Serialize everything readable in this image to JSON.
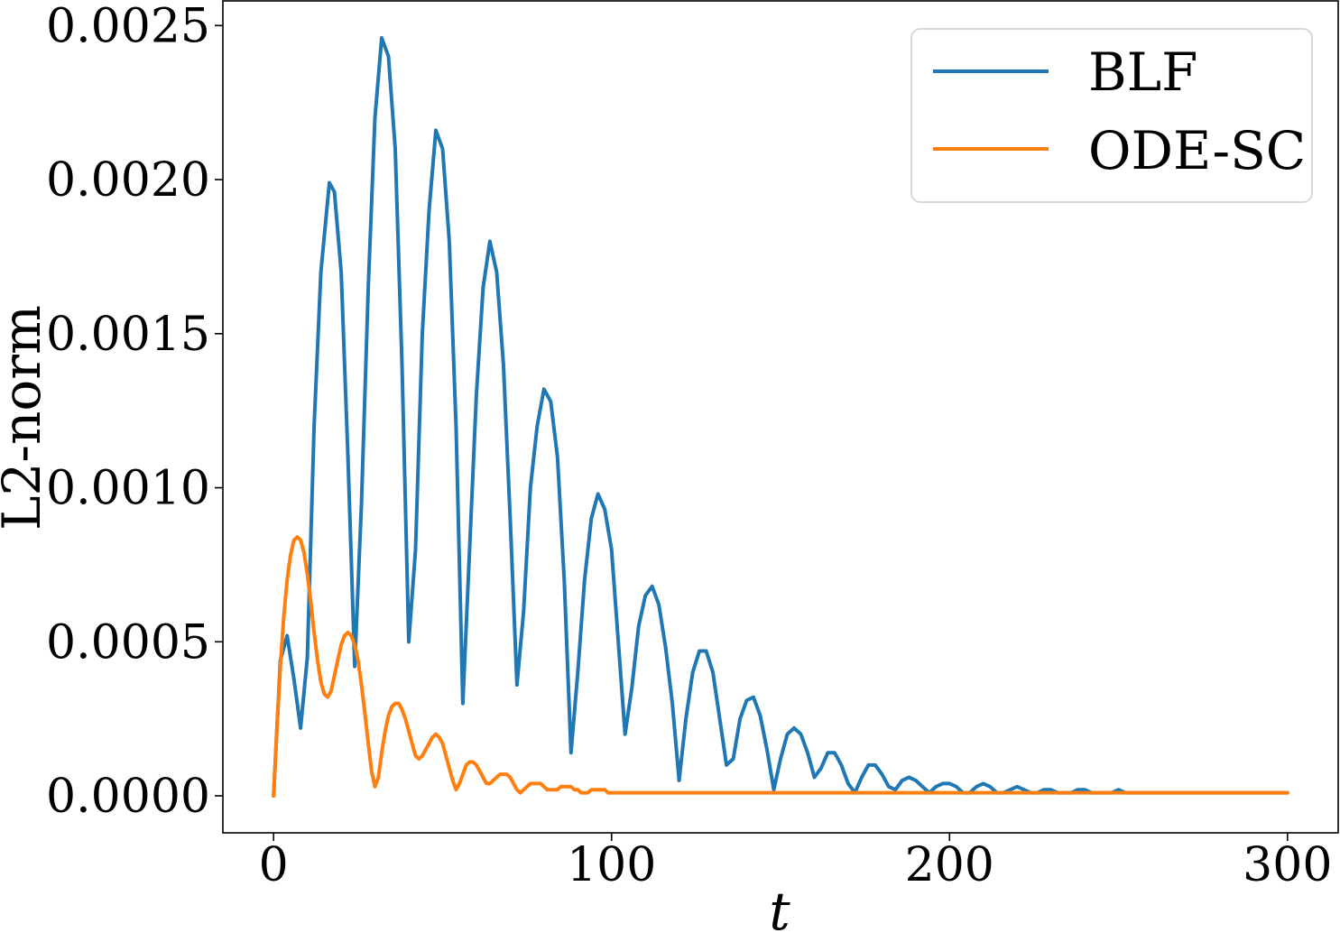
{
  "chart_data": {
    "type": "line",
    "title": "",
    "xlabel": "t",
    "ylabel": "L2-norm",
    "xlim": [
      -15,
      315
    ],
    "ylim": [
      -0.00012,
      0.00258
    ],
    "xticks": [
      0,
      100,
      200,
      300
    ],
    "xtick_labels": [
      "0",
      "100",
      "200",
      "300"
    ],
    "yticks": [
      0,
      0.0005,
      0.001,
      0.0015,
      0.002,
      0.0025
    ],
    "ytick_labels": [
      "0.0000",
      "0.0005",
      "0.0010",
      "0.0015",
      "0.0020",
      "0.0025"
    ],
    "grid": false,
    "legend_position": "top-right",
    "series": [
      {
        "name": "BLF",
        "color": "#1f77b4",
        "x": [
          0,
          2,
          4,
          6,
          8,
          10,
          12,
          14,
          16.5,
          18,
          20,
          22,
          24,
          26,
          28,
          30,
          32,
          34,
          36,
          38,
          40,
          42,
          44,
          46,
          48,
          50,
          52,
          54,
          56,
          58,
          60,
          62,
          64,
          66,
          68,
          70,
          72,
          74,
          76,
          78,
          80,
          82,
          84,
          86,
          88,
          90,
          92,
          94,
          96,
          98,
          100,
          102,
          104,
          106,
          108,
          110,
          112,
          114,
          116,
          118,
          120,
          122,
          124,
          126,
          128,
          130,
          132,
          134,
          136,
          138,
          140,
          142,
          144,
          146,
          148,
          150,
          152,
          154,
          156,
          158,
          160,
          162,
          164,
          166,
          168,
          170,
          172,
          174,
          176,
          178,
          180,
          182,
          184,
          186,
          188,
          190,
          192,
          194,
          196,
          198,
          200,
          202,
          204,
          206,
          208,
          210,
          212,
          214,
          216,
          218,
          220,
          222,
          224,
          226,
          228,
          230,
          232,
          234,
          236,
          238,
          240,
          242,
          244,
          246,
          248,
          250,
          252,
          254,
          256,
          258,
          260,
          262,
          264,
          266,
          268,
          270,
          272,
          274,
          276,
          278,
          280,
          282,
          284,
          286,
          288,
          290,
          292,
          294,
          296,
          298,
          300
        ],
        "y": [
          0.0,
          0.00044,
          0.00052,
          0.00038,
          0.00022,
          0.00045,
          0.0012,
          0.0017,
          0.00199,
          0.00196,
          0.0017,
          0.0011,
          0.00042,
          0.00095,
          0.00165,
          0.0022,
          0.00246,
          0.0024,
          0.0021,
          0.0014,
          0.0005,
          0.0008,
          0.0015,
          0.0019,
          0.00216,
          0.0021,
          0.0018,
          0.0012,
          0.0003,
          0.0008,
          0.0013,
          0.00165,
          0.0018,
          0.0017,
          0.0014,
          0.0009,
          0.00036,
          0.0006,
          0.001,
          0.0012,
          0.00132,
          0.00128,
          0.0011,
          0.0007,
          0.00014,
          0.0004,
          0.0007,
          0.0009,
          0.00098,
          0.00093,
          0.0008,
          0.0005,
          0.0002,
          0.00035,
          0.00055,
          0.00065,
          0.00068,
          0.00062,
          0.00048,
          0.0003,
          5e-05,
          0.00025,
          0.0004,
          0.00047,
          0.00047,
          0.0004,
          0.00025,
          0.0001,
          0.00012,
          0.00025,
          0.00031,
          0.00032,
          0.00026,
          0.00015,
          2e-05,
          0.00012,
          0.0002,
          0.00022,
          0.0002,
          0.00014,
          6e-05,
          9e-05,
          0.00014,
          0.00014,
          0.0001,
          4e-05,
          1e-05,
          6e-05,
          0.0001,
          0.0001,
          7e-05,
          3e-05,
          2e-05,
          5e-05,
          6e-05,
          5e-05,
          3e-05,
          1e-05,
          3e-05,
          4e-05,
          4e-05,
          3e-05,
          1e-05,
          1e-05,
          3e-05,
          4e-05,
          3e-05,
          1e-05,
          1e-05,
          2e-05,
          3e-05,
          2e-05,
          1e-05,
          1e-05,
          2e-05,
          2e-05,
          1e-05,
          1e-05,
          1e-05,
          2e-05,
          2e-05,
          1e-05,
          1e-05,
          1e-05,
          1e-05,
          2e-05,
          1e-05,
          1e-05,
          1e-05,
          1e-05,
          1e-05,
          1e-05,
          1e-05,
          1e-05,
          1e-05,
          1e-05,
          1e-05,
          1e-05,
          1e-05,
          1e-05,
          1e-05,
          1e-05,
          1e-05,
          1e-05,
          1e-05,
          1e-05,
          1e-05,
          1e-05,
          1e-05,
          1e-05,
          1e-05
        ]
      },
      {
        "name": "ODE-SC",
        "color": "#ff7f0e",
        "x": [
          0,
          1,
          2,
          3,
          4,
          5,
          6,
          7,
          8,
          9,
          10,
          11,
          12,
          13,
          14,
          15,
          16,
          17,
          18,
          19,
          20,
          21,
          22,
          23,
          24,
          25,
          26,
          27,
          28,
          29,
          30,
          31,
          32,
          33,
          34,
          35,
          36,
          37,
          38,
          39,
          40,
          41,
          42,
          43,
          44,
          45,
          46,
          47,
          48,
          49,
          50,
          51,
          52,
          53,
          54,
          55,
          56,
          57,
          58,
          59,
          60,
          61,
          62,
          63,
          64,
          65,
          66,
          67,
          68,
          69,
          70,
          71,
          72,
          73,
          74,
          75,
          76,
          77,
          78,
          79,
          80,
          81,
          82,
          83,
          84,
          85,
          86,
          87,
          88,
          89,
          90,
          91,
          92,
          93,
          94,
          95,
          96,
          97,
          98,
          99,
          100,
          101,
          102,
          103,
          104,
          105,
          106,
          107,
          108,
          109,
          110,
          111,
          112,
          113,
          114,
          115,
          116,
          117,
          118,
          119,
          120,
          121,
          122,
          123,
          124,
          125,
          126,
          127,
          128,
          129,
          130,
          131,
          132,
          133,
          134,
          135,
          136,
          137,
          138,
          139,
          140,
          141,
          142,
          143,
          144,
          145,
          146,
          147,
          148,
          149,
          150,
          151,
          152,
          153,
          154,
          155,
          156,
          157,
          158,
          159,
          160,
          161,
          162,
          163,
          164,
          165,
          166,
          167,
          168,
          169,
          170,
          171,
          172,
          173,
          174,
          175,
          176,
          177,
          178,
          179,
          180,
          181,
          182,
          183,
          184,
          185,
          186,
          187,
          188,
          189,
          190,
          191,
          192,
          193,
          194,
          195,
          196,
          197,
          198,
          199,
          200,
          201,
          202,
          203,
          204,
          205,
          206,
          207,
          208,
          209,
          210,
          211,
          212,
          213,
          214,
          215,
          216,
          217,
          218,
          219,
          220,
          221,
          222,
          223,
          224,
          225,
          226,
          227,
          228,
          229,
          230,
          231,
          232,
          233,
          234,
          235,
          236,
          237,
          238,
          239,
          240,
          241,
          242,
          243,
          244,
          245,
          246,
          247,
          248,
          249,
          250,
          251,
          252,
          253,
          254,
          255,
          256,
          257,
          258,
          259,
          260,
          261,
          262,
          263,
          264,
          265,
          266,
          267,
          268,
          269,
          270,
          271,
          272,
          273,
          274,
          275,
          276,
          277,
          278,
          279,
          280,
          281,
          282,
          283,
          284,
          285,
          286,
          287,
          288,
          289,
          290,
          291,
          292,
          293,
          294,
          295,
          296,
          297,
          298,
          299,
          300
        ],
        "y": [
          0.0,
          0.00022,
          0.00042,
          0.00058,
          0.0007,
          0.00078,
          0.00083,
          0.00084,
          0.00083,
          0.00079,
          0.00072,
          0.00063,
          0.00053,
          0.00044,
          0.00037,
          0.00033,
          0.00032,
          0.00034,
          0.00039,
          0.00044,
          0.00049,
          0.00052,
          0.00053,
          0.00052,
          0.00049,
          0.00044,
          0.00036,
          0.00027,
          0.00017,
          8e-05,
          3e-05,
          6e-05,
          0.00014,
          0.00021,
          0.00026,
          0.00029,
          0.0003,
          0.0003,
          0.00028,
          0.00025,
          0.00021,
          0.00017,
          0.00013,
          0.00012,
          0.00013,
          0.00015,
          0.00017,
          0.00019,
          0.0002,
          0.00019,
          0.00017,
          0.00013,
          9e-05,
          5e-05,
          2e-05,
          4e-05,
          7e-05,
          0.0001,
          0.00011,
          0.00011,
          0.0001,
          8e-05,
          6e-05,
          4e-05,
          4e-05,
          5e-05,
          6e-05,
          7e-05,
          7e-05,
          7e-05,
          6e-05,
          4e-05,
          2e-05,
          1e-05,
          2e-05,
          3e-05,
          4e-05,
          4e-05,
          4e-05,
          4e-05,
          3e-05,
          2e-05,
          2e-05,
          2e-05,
          2e-05,
          3e-05,
          3e-05,
          3e-05,
          3e-05,
          2e-05,
          2e-05,
          1e-05,
          1e-05,
          1e-05,
          2e-05,
          2e-05,
          2e-05,
          2e-05,
          2e-05,
          1e-05,
          1e-05,
          1e-05,
          1e-05,
          1e-05,
          1e-05,
          1e-05,
          1e-05,
          1e-05,
          1e-05,
          1e-05,
          1e-05,
          1e-05,
          1e-05,
          1e-05,
          1e-05,
          1e-05,
          1e-05,
          1e-05,
          1e-05,
          1e-05,
          1e-05,
          1e-05,
          1e-05,
          1e-05,
          1e-05,
          1e-05,
          1e-05,
          1e-05,
          1e-05,
          1e-05,
          1e-05,
          1e-05,
          1e-05,
          1e-05,
          1e-05,
          1e-05,
          1e-05,
          1e-05,
          1e-05,
          1e-05,
          1e-05,
          1e-05,
          1e-05,
          1e-05,
          1e-05,
          1e-05,
          1e-05,
          1e-05,
          1e-05,
          1e-05,
          1e-05,
          1e-05,
          1e-05,
          1e-05,
          1e-05,
          1e-05,
          1e-05,
          1e-05,
          1e-05,
          1e-05,
          1e-05,
          1e-05,
          1e-05,
          1e-05,
          1e-05,
          1e-05,
          1e-05,
          1e-05,
          1e-05,
          1e-05,
          1e-05,
          1e-05,
          1e-05,
          1e-05,
          1e-05,
          1e-05,
          1e-05,
          1e-05,
          1e-05,
          1e-05,
          1e-05,
          1e-05,
          1e-05,
          1e-05,
          1e-05,
          1e-05,
          1e-05,
          1e-05,
          1e-05,
          1e-05,
          1e-05,
          1e-05,
          1e-05,
          1e-05,
          1e-05,
          1e-05,
          1e-05,
          1e-05,
          1e-05,
          1e-05,
          1e-05,
          1e-05,
          1e-05,
          1e-05,
          1e-05,
          1e-05,
          1e-05,
          1e-05,
          1e-05,
          1e-05,
          1e-05,
          1e-05,
          1e-05,
          1e-05,
          1e-05,
          1e-05,
          1e-05,
          1e-05,
          1e-05,
          1e-05,
          1e-05,
          1e-05,
          1e-05,
          1e-05,
          1e-05,
          1e-05,
          1e-05,
          1e-05,
          1e-05,
          1e-05,
          1e-05,
          1e-05,
          1e-05,
          1e-05,
          1e-05,
          1e-05,
          1e-05,
          1e-05,
          1e-05,
          1e-05,
          1e-05,
          1e-05,
          1e-05,
          1e-05,
          1e-05,
          1e-05,
          1e-05,
          1e-05,
          1e-05,
          1e-05,
          1e-05,
          1e-05,
          1e-05,
          1e-05,
          1e-05,
          1e-05,
          1e-05,
          1e-05,
          1e-05,
          1e-05,
          1e-05,
          1e-05,
          1e-05,
          1e-05,
          1e-05,
          1e-05,
          1e-05,
          1e-05,
          1e-05,
          1e-05,
          1e-05,
          1e-05,
          1e-05,
          1e-05,
          1e-05,
          1e-05,
          1e-05,
          1e-05,
          1e-05,
          1e-05,
          1e-05,
          1e-05,
          1e-05,
          1e-05,
          1e-05,
          1e-05,
          1e-05,
          1e-05,
          1e-05,
          1e-05,
          1e-05,
          1e-05,
          1e-05,
          1e-05,
          1e-05,
          1e-05,
          1e-05,
          1e-05,
          1e-05,
          1e-05,
          1e-05
        ]
      }
    ]
  }
}
